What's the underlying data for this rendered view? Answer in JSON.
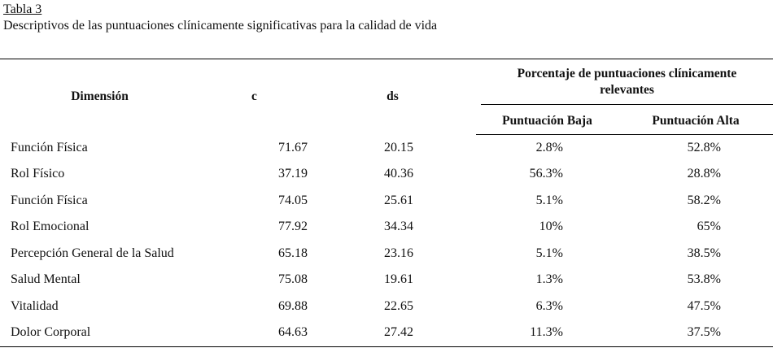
{
  "caption": {
    "table_number": "Tabla 3",
    "title": "Descriptivos de las puntuaciones clínicamente significativas para la calidad de vida"
  },
  "headers": {
    "dimension": "Dimensión",
    "c": "c",
    "ds": "ds",
    "group": "Porcentaje de puntuaciones clínicamente relevantes",
    "low": "Puntuación Baja",
    "high": "Puntuación Alta"
  },
  "rows": [
    {
      "dimension": "Función Física",
      "c": "71.67",
      "ds": "20.15",
      "low": "2.8%",
      "high": "52.8%"
    },
    {
      "dimension": "Rol Físico",
      "c": "37.19",
      "ds": "40.36",
      "low": "56.3%",
      "high": "28.8%"
    },
    {
      "dimension": "Función Física",
      "c": "74.05",
      "ds": "25.61",
      "low": "5.1%",
      "high": "58.2%"
    },
    {
      "dimension": "Rol Emocional",
      "c": "77.92",
      "ds": "34.34",
      "low": "10%",
      "high": "65%"
    },
    {
      "dimension": "Percepción General de la Salud",
      "c": "65.18",
      "ds": "23.16",
      "low": "5.1%",
      "high": "38.5%"
    },
    {
      "dimension": "Salud Mental",
      "c": "75.08",
      "ds": "19.61",
      "low": "1.3%",
      "high": "53.8%"
    },
    {
      "dimension": "Vitalidad",
      "c": "69.88",
      "ds": "22.65",
      "low": "6.3%",
      "high": "47.5%"
    },
    {
      "dimension": "Dolor Corporal",
      "c": "64.63",
      "ds": "27.42",
      "low": "11.3%",
      "high": "37.5%"
    }
  ]
}
